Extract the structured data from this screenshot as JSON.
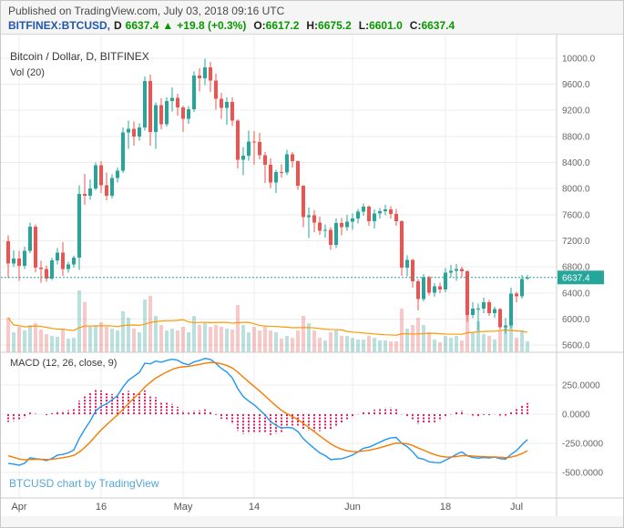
{
  "header": {
    "published": "Published on TradingView.com, July 03, 2018 09:16 UTC",
    "symbol": "BITFINEX:BTCUSD,",
    "interval": "D",
    "last": "6637.4",
    "arrow": "▲",
    "change": "+19.8 (+0.3%)",
    "open_label": "O:",
    "open": "6617.2",
    "high_label": "H:",
    "high": "6675.2",
    "low_label": "L:",
    "low": "6601.0",
    "close_label": "C:",
    "close": "6637.4"
  },
  "main_pane": {
    "title": "Bitcoin / Dollar, D, BITFINEX",
    "vol_label": "Vol (20)"
  },
  "macd_pane": {
    "label": "MACD (12, 26, close, 9)"
  },
  "watermark": "BTCUSD chart by TradingView",
  "colors": {
    "up": "#26a69a",
    "down": "#ef5350",
    "macd_line": "#2196f3",
    "signal_line": "#f57c00",
    "histogram": "#e91e63",
    "volume_ma": "#ff9800",
    "grid": "#ececec",
    "pane_border": "#cccccc",
    "axis_text": "#666666",
    "badge_text": "#ffffff"
  },
  "chart_data": {
    "type": "candlestick",
    "title": "Bitcoin / Dollar, D, BITFINEX",
    "symbol": "BITFINEX:BTCUSD",
    "interval": "D",
    "last_price": 6637.4,
    "price_axis_ticks": [
      10000,
      9600,
      9200,
      8800,
      8400,
      8000,
      7600,
      7200,
      6800,
      6400,
      6000,
      5600
    ],
    "price_range": [
      5490,
      10360
    ],
    "macd_axis_ticks": [
      250,
      0,
      -250,
      -500
    ],
    "macd_range": [
      -719,
      531
    ],
    "x_axis_labels": [
      {
        "label": "Apr",
        "i": 2
      },
      {
        "label": "16",
        "i": 17
      },
      {
        "label": "May",
        "i": 32
      },
      {
        "label": "14",
        "i": 45
      },
      {
        "label": "Jun",
        "i": 63
      },
      {
        "label": "18",
        "i": 80
      },
      {
        "label": "Jul",
        "i": 93
      }
    ],
    "indicators": {
      "volume_ma_period": 20,
      "macd": {
        "fast": 12,
        "slow": 26,
        "signal": 9,
        "seed": {
          "ema12": 7500,
          "ema26": 7900,
          "signal": -340
        }
      }
    },
    "candles": [
      [
        7190,
        7280,
        6630,
        6850,
        38
      ],
      [
        6850,
        7050,
        6805,
        6926,
        22
      ],
      [
        6926,
        7045,
        6585,
        6816,
        28
      ],
      [
        6816,
        7110,
        6770,
        7049,
        24
      ],
      [
        7049,
        7480,
        7010,
        7418,
        30
      ],
      [
        7418,
        7450,
        6715,
        6789,
        32
      ],
      [
        6789,
        6890,
        6555,
        6770,
        25
      ],
      [
        6770,
        6820,
        6570,
        6617,
        20
      ],
      [
        6617,
        6940,
        6600,
        6896,
        18
      ],
      [
        6896,
        7090,
        6840,
        7020,
        17
      ],
      [
        7020,
        7180,
        6660,
        6770,
        26
      ],
      [
        6770,
        6875,
        6710,
        6834,
        15
      ],
      [
        6834,
        6970,
        6790,
        6940,
        16
      ],
      [
        6940,
        8050,
        6755,
        7916,
        68
      ],
      [
        7916,
        8225,
        7750,
        7889,
        55
      ],
      [
        7889,
        8140,
        7830,
        8003,
        28
      ],
      [
        8003,
        8400,
        7975,
        8355,
        30
      ],
      [
        8355,
        8420,
        7935,
        8048,
        33
      ],
      [
        8048,
        8245,
        7820,
        7890,
        28
      ],
      [
        7890,
        8215,
        7850,
        8163,
        26
      ],
      [
        8163,
        8320,
        8090,
        8274,
        24
      ],
      [
        8274,
        8935,
        8240,
        8863,
        45
      ],
      [
        8863,
        9040,
        8610,
        8917,
        38
      ],
      [
        8917,
        9025,
        8660,
        8795,
        26
      ],
      [
        8795,
        9000,
        8735,
        8940,
        22
      ],
      [
        8940,
        9720,
        8890,
        9650,
        58
      ],
      [
        9650,
        9745,
        8655,
        8870,
        62
      ],
      [
        8870,
        9320,
        8610,
        9281,
        40
      ],
      [
        9281,
        9380,
        8910,
        8987,
        30
      ],
      [
        8987,
        9400,
        8950,
        9339,
        24
      ],
      [
        9339,
        9550,
        9180,
        9392,
        26
      ],
      [
        9392,
        9455,
        9120,
        9245,
        24
      ],
      [
        9245,
        9275,
        8870,
        9067,
        28
      ],
      [
        9067,
        9265,
        8990,
        9219,
        22
      ],
      [
        9219,
        9795,
        9175,
        9734,
        40
      ],
      [
        9734,
        9845,
        9490,
        9692,
        30
      ],
      [
        9692,
        9990,
        9585,
        9858,
        32
      ],
      [
        9858,
        9940,
        9480,
        9654,
        28
      ],
      [
        9654,
        9760,
        9210,
        9373,
        30
      ],
      [
        9373,
        9465,
        9070,
        9234,
        28
      ],
      [
        9234,
        9395,
        8980,
        9325,
        26
      ],
      [
        9325,
        9400,
        8960,
        9043,
        25
      ],
      [
        9043,
        9060,
        8310,
        8441,
        52
      ],
      [
        8441,
        8640,
        8205,
        8504,
        30
      ],
      [
        8504,
        8890,
        8430,
        8723,
        22
      ],
      [
        8723,
        8880,
        8365,
        8716,
        28
      ],
      [
        8716,
        8850,
        8445,
        8510,
        24
      ],
      [
        8510,
        8560,
        8085,
        8368,
        28
      ],
      [
        8368,
        8465,
        8010,
        8094,
        24
      ],
      [
        8094,
        8290,
        7930,
        8250,
        22
      ],
      [
        8250,
        8375,
        8170,
        8247,
        15
      ],
      [
        8247,
        8595,
        8205,
        8522,
        18
      ],
      [
        8522,
        8560,
        8320,
        8418,
        16
      ],
      [
        8418,
        8425,
        7980,
        8041,
        24
      ],
      [
        8041,
        8050,
        7410,
        7559,
        40
      ],
      [
        7559,
        7710,
        7240,
        7587,
        32
      ],
      [
        7587,
        7665,
        7330,
        7480,
        24
      ],
      [
        7480,
        7570,
        7290,
        7355,
        16
      ],
      [
        7355,
        7450,
        7245,
        7368,
        13
      ],
      [
        7368,
        7410,
        7060,
        7135,
        22
      ],
      [
        7135,
        7540,
        7085,
        7472,
        24
      ],
      [
        7472,
        7550,
        7280,
        7406,
        18
      ],
      [
        7406,
        7600,
        7350,
        7494,
        18
      ],
      [
        7494,
        7620,
        7370,
        7541,
        16
      ],
      [
        7541,
        7690,
        7465,
        7643,
        14
      ],
      [
        7643,
        7770,
        7580,
        7720,
        14
      ],
      [
        7720,
        7745,
        7430,
        7500,
        18
      ],
      [
        7500,
        7680,
        7390,
        7616,
        16
      ],
      [
        7616,
        7700,
        7540,
        7653,
        13
      ],
      [
        7653,
        7750,
        7590,
        7680,
        13
      ],
      [
        7680,
        7730,
        7540,
        7614,
        12
      ],
      [
        7614,
        7690,
        7430,
        7500,
        12
      ],
      [
        7500,
        7510,
        6660,
        6786,
        48
      ],
      [
        6786,
        6975,
        6655,
        6906,
        26
      ],
      [
        6906,
        6920,
        6480,
        6580,
        30
      ],
      [
        6580,
        6610,
        6130,
        6308,
        38
      ],
      [
        6308,
        6690,
        6270,
        6643,
        30
      ],
      [
        6643,
        6660,
        6360,
        6404,
        22
      ],
      [
        6404,
        6550,
        6340,
        6499,
        14
      ],
      [
        6499,
        6560,
        6395,
        6456,
        11
      ],
      [
        6456,
        6780,
        6410,
        6710,
        18
      ],
      [
        6710,
        6830,
        6640,
        6736,
        16
      ],
      [
        6736,
        6845,
        6585,
        6766,
        18
      ],
      [
        6766,
        6800,
        6640,
        6734,
        13
      ],
      [
        6734,
        6745,
        5955,
        6060,
        48
      ],
      [
        6060,
        6260,
        6015,
        6157,
        22
      ],
      [
        6157,
        6240,
        5825,
        6162,
        34
      ],
      [
        6162,
        6330,
        6090,
        6254,
        20
      ],
      [
        6254,
        6290,
        6050,
        6089,
        18
      ],
      [
        6089,
        6190,
        6020,
        6153,
        14
      ],
      [
        6153,
        6170,
        5840,
        5872,
        24
      ],
      [
        5872,
        6010,
        5777,
        5900,
        28
      ],
      [
        5900,
        6480,
        5855,
        6393,
        36
      ],
      [
        6393,
        6420,
        6255,
        6349,
        16
      ],
      [
        6349,
        6675,
        6310,
        6616,
        24
      ],
      [
        6617.2,
        6675.2,
        6601,
        6637.4,
        12
      ]
    ]
  }
}
